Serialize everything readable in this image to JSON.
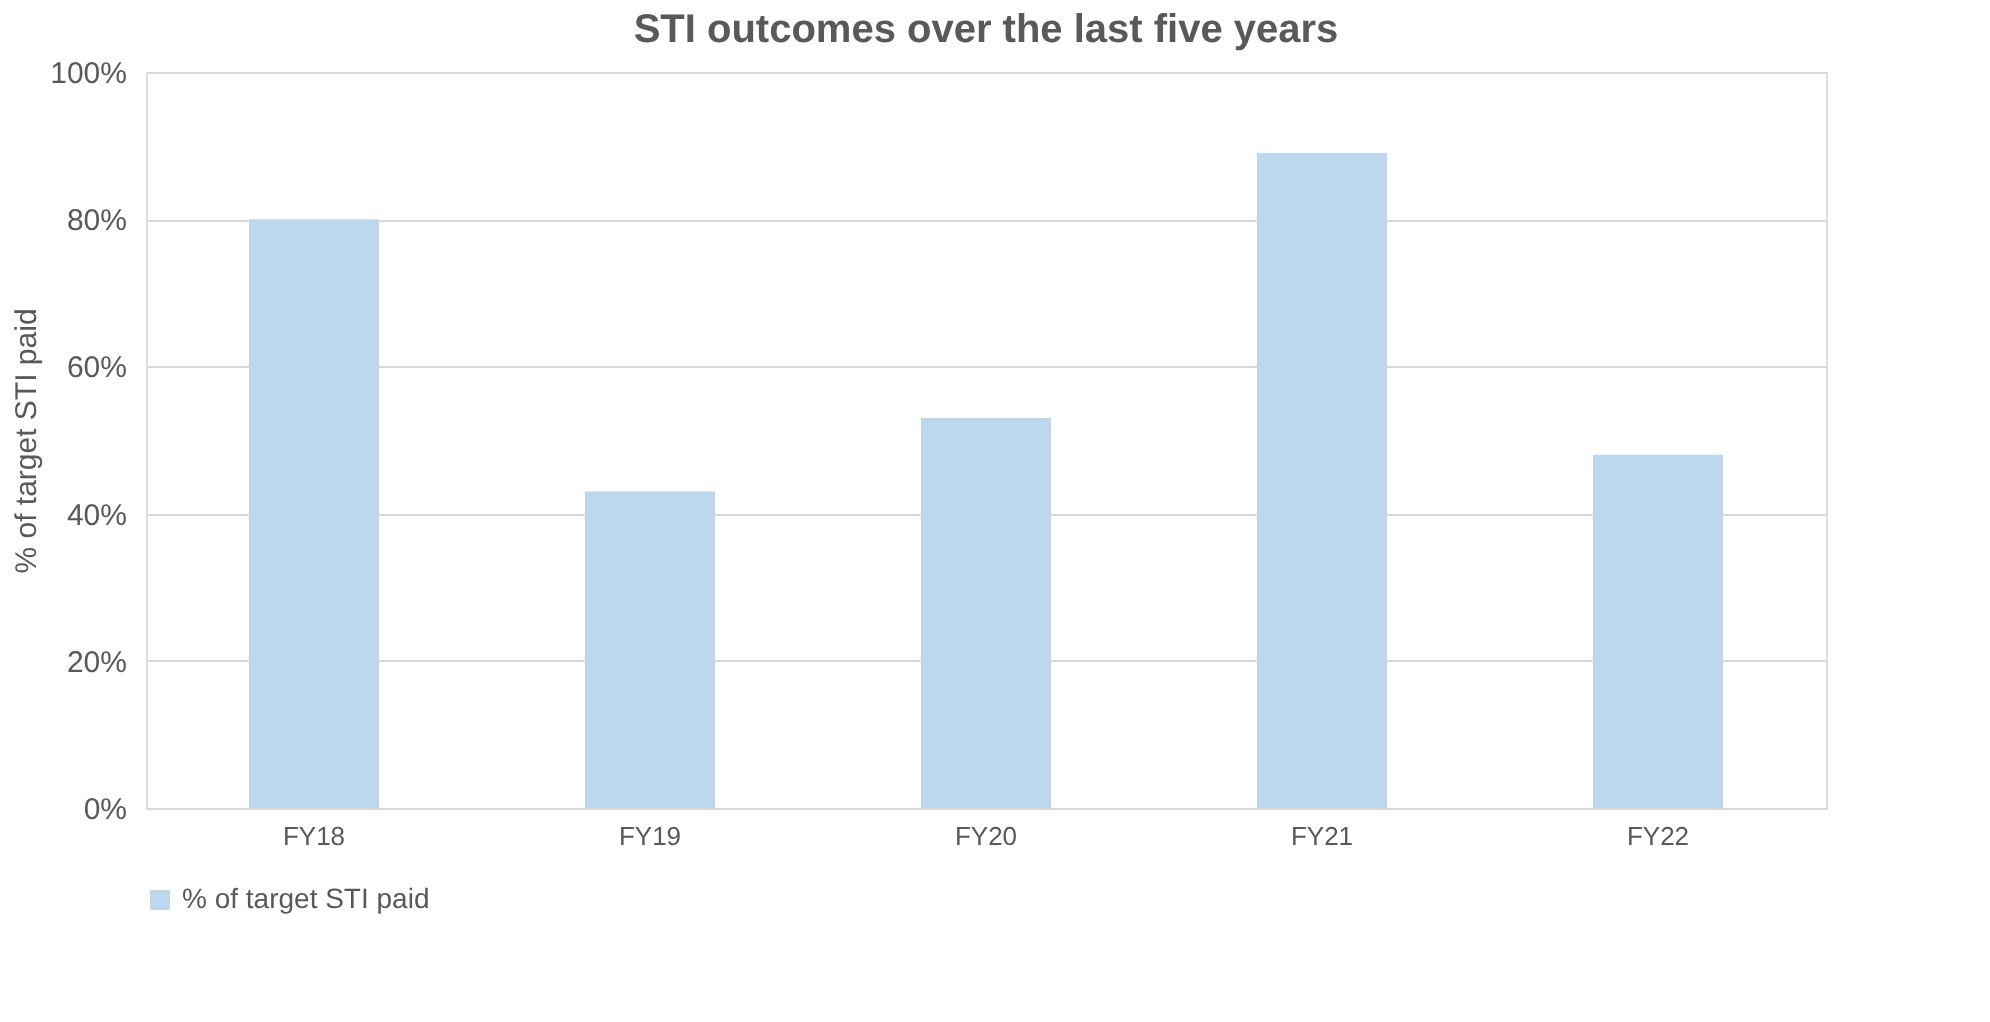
{
  "chart_data": {
    "type": "bar",
    "title": "STI outcomes over the last five years",
    "ylabel": "% of target STI paid",
    "categories": [
      "FY18",
      "FY19",
      "FY20",
      "FY21",
      "FY22"
    ],
    "series": [
      {
        "name": "% of target STI paid",
        "color": "#bdd7ee",
        "values": [
          80,
          43,
          53,
          89,
          48
        ]
      }
    ],
    "ylim": [
      0,
      100
    ],
    "yticks": [
      {
        "value": 0,
        "label": "0%"
      },
      {
        "value": 20,
        "label": "20%"
      },
      {
        "value": 40,
        "label": "40%"
      },
      {
        "value": 60,
        "label": "60%"
      },
      {
        "value": 80,
        "label": "80%"
      },
      {
        "value": 100,
        "label": "100%"
      }
    ],
    "grid": "y",
    "legend": "bottom"
  }
}
